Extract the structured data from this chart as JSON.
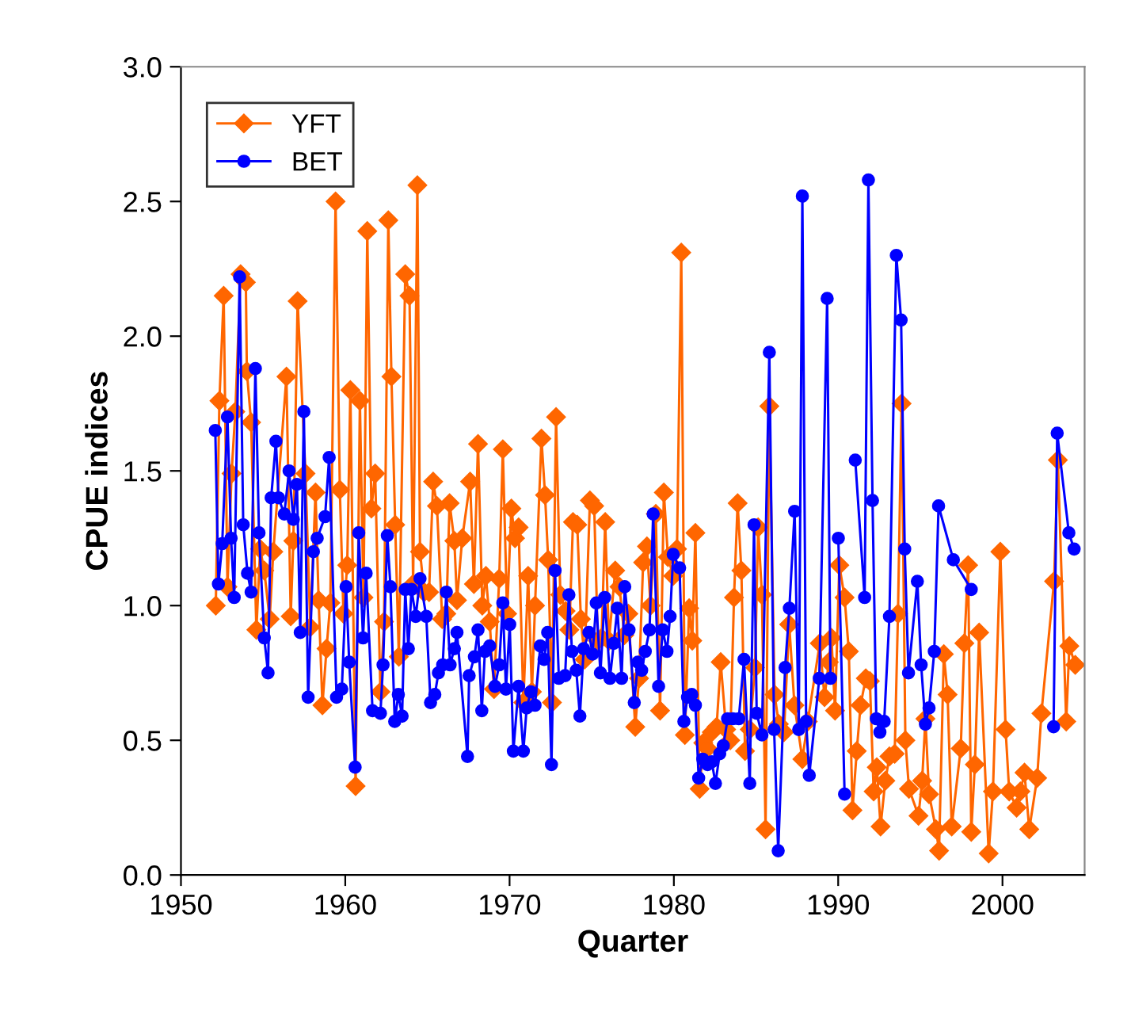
{
  "chart_data": {
    "type": "line",
    "xlabel": "Quarter",
    "ylabel": "CPUE indices",
    "xlim": [
      1950,
      2005
    ],
    "xticks": [
      1950,
      1960,
      1970,
      1980,
      1990,
      2000
    ],
    "ylim": [
      0,
      3
    ],
    "yticks": [
      {
        "value": 0,
        "label": "0.0"
      },
      {
        "value": 0.5,
        "label": "0.5"
      },
      {
        "value": 1,
        "label": "1.0"
      },
      {
        "value": 1.5,
        "label": "1.5"
      },
      {
        "value": 2,
        "label": "2.0"
      },
      {
        "value": 2.5,
        "label": "2.5"
      },
      {
        "value": 3,
        "label": "3.0"
      }
    ],
    "grid": false,
    "legend": "top left",
    "series": [
      {
        "name": "YFT",
        "color": "#ff6600",
        "marker": "diamond",
        "x": [
          1952.12,
          1952.34,
          1952.6,
          1952.83,
          1953.08,
          1953.31,
          1953.63,
          1953.95,
          1954.01,
          1954.27,
          1954.59,
          1954.82,
          1955.07,
          1955.4,
          1955.62,
          1956.42,
          1956.68,
          1956.84,
          1957.1,
          1957.58,
          1957.87,
          1958.19,
          1958.38,
          1958.61,
          1958.86,
          1959.09,
          1959.41,
          1959.67,
          1959.89,
          1960.12,
          1960.31,
          1960.63,
          1960.89,
          1961.11,
          1961.34,
          1961.59,
          1961.82,
          1962.14,
          1962.36,
          1962.62,
          1962.81,
          1963.04,
          1963.26,
          1963.65,
          1963.91,
          1964.13,
          1964.39,
          1964.55,
          1964.8,
          1965.1,
          1965.35,
          1965.58,
          1965.9,
          1966.15,
          1966.35,
          1966.64,
          1966.8,
          1967.12,
          1967.6,
          1967.83,
          1968.08,
          1968.34,
          1968.56,
          1968.79,
          1969.05,
          1969.37,
          1969.59,
          1969.85,
          1970.11,
          1970.33,
          1970.55,
          1970.84,
          1971.13,
          1971.36,
          1971.55,
          1971.94,
          1972.16,
          1972.35,
          1972.58,
          1972.83,
          1973.09,
          1973.41,
          1973.64,
          1973.86,
          1974.12,
          1974.34,
          1974.57,
          1974.89,
          1975.15,
          1975.37,
          1975.6,
          1975.82,
          1976.05,
          1976.43,
          1976.69,
          1976.98,
          1977.23,
          1977.65,
          1977.88,
          1978.13,
          1978.36,
          1978.58,
          1978.9,
          1979.16,
          1979.39,
          1979.64,
          1979.96,
          1980.19,
          1980.45,
          1980.67,
          1980.93,
          1981.12,
          1981.31,
          1981.57,
          1981.79,
          1982.05,
          1982.31,
          1982.6,
          1982.85,
          1983.18,
          1983.43,
          1983.66,
          1983.88,
          1984.11,
          1984.33,
          1984.62,
          1984.94,
          1985.13,
          1985.36,
          1985.58,
          1985.81,
          1986.13,
          1986.39,
          1986.7,
          1987.02,
          1987.34,
          1987.82,
          1988.15,
          1988.88,
          1989.17,
          1989.43,
          1989.59,
          1989.81,
          1990.07,
          1990.39,
          1990.65,
          1990.87,
          1991.13,
          1991.36,
          1991.68,
          1991.93,
          1992.16,
          1992.35,
          1992.58,
          1992.87,
          1993.12,
          1993.44,
          1993.64,
          1993.86,
          1994.09,
          1994.31,
          1994.89,
          1995.11,
          1995.31,
          1995.53,
          1995.95,
          1996.14,
          1996.43,
          1996.66,
          1996.91,
          1997.46,
          1997.68,
          1997.91,
          1998.1,
          1998.32,
          1998.58,
          1999.16,
          1999.42,
          1999.87,
          2000.19,
          2000.41,
          2000.86,
          2001.09,
          2001.34,
          2001.63,
          2002.11,
          2002.37,
          2003.14,
          2003.37,
          2003.88,
          2004.07,
          2004.43
        ],
        "values": [
          1.0,
          1.76,
          2.15,
          1.07,
          1.49,
          1.72,
          2.23,
          2.2,
          1.87,
          1.68,
          0.91,
          1.21,
          1.13,
          0.95,
          1.2,
          1.85,
          0.96,
          1.24,
          2.13,
          1.49,
          0.92,
          1.42,
          1.02,
          0.63,
          0.84,
          1.01,
          2.5,
          1.43,
          0.97,
          1.15,
          1.8,
          0.33,
          1.76,
          1.03,
          2.39,
          1.36,
          1.49,
          0.68,
          0.94,
          2.43,
          1.85,
          1.3,
          0.81,
          2.23,
          2.15,
          1.08,
          2.56,
          1.2,
          1.05,
          1.05,
          1.46,
          1.37,
          0.95,
          0.97,
          1.38,
          1.24,
          1.02,
          1.25,
          1.46,
          1.08,
          1.6,
          1.0,
          1.11,
          0.94,
          0.69,
          1.1,
          1.58,
          0.97,
          1.36,
          1.25,
          1.29,
          0.64,
          1.11,
          0.68,
          1.0,
          1.62,
          1.41,
          1.17,
          0.64,
          1.7,
          1.04,
          0.98,
          0.91,
          1.31,
          1.3,
          0.95,
          0.8,
          1.39,
          1.37,
          0.87,
          0.88,
          1.31,
          0.87,
          1.13,
          1.07,
          0.89,
          0.97,
          0.55,
          0.73,
          1.16,
          1.22,
          1.0,
          1.34,
          0.61,
          1.42,
          1.18,
          1.11,
          1.21,
          2.31,
          0.52,
          0.99,
          0.87,
          1.27,
          0.32,
          0.49,
          0.47,
          0.53,
          0.55,
          0.79,
          0.54,
          0.5,
          1.03,
          1.38,
          1.13,
          0.46,
          0.54,
          0.77,
          1.29,
          1.04,
          0.17,
          1.74,
          0.67,
          0.56,
          0.53,
          0.93,
          0.63,
          0.43,
          0.57,
          0.86,
          0.66,
          0.79,
          0.88,
          0.61,
          1.15,
          1.03,
          0.83,
          0.24,
          0.46,
          0.63,
          0.73,
          0.72,
          0.31,
          0.4,
          0.18,
          0.35,
          0.44,
          0.45,
          0.97,
          1.75,
          0.5,
          0.32,
          0.22,
          0.35,
          0.58,
          0.3,
          0.17,
          0.09,
          0.82,
          0.67,
          0.18,
          0.47,
          0.86,
          1.15,
          0.16,
          0.41,
          0.9,
          0.08,
          0.31,
          1.2,
          0.54,
          0.31,
          0.25,
          0.31,
          0.38,
          0.17,
          0.36,
          0.6,
          1.09,
          1.54,
          0.57,
          0.85,
          0.78
        ]
      },
      {
        "name": "BET",
        "color": "#0000ff",
        "marker": "circle",
        "x": [
          1952.09,
          1952.28,
          1952.51,
          1952.83,
          1953.05,
          1953.24,
          1953.57,
          1953.79,
          1954.05,
          1954.27,
          1954.53,
          1954.75,
          1955.07,
          1955.3,
          1955.49,
          1955.78,
          1955.94,
          1956.29,
          1956.58,
          1956.84,
          1957.06,
          1957.26,
          1957.48,
          1957.74,
          1958.06,
          1958.29,
          1958.77,
          1959.02,
          1959.47,
          1959.79,
          1960.05,
          1960.24,
          1960.6,
          1960.82,
          1961.08,
          1961.27,
          1961.66,
          1962.14,
          1962.3,
          1962.56,
          1962.75,
          1963.01,
          1963.23,
          1963.46,
          1963.65,
          1963.84,
          1964.03,
          1964.29,
          1964.55,
          1964.93,
          1965.19,
          1965.45,
          1965.67,
          1965.93,
          1966.15,
          1966.38,
          1966.64,
          1966.8,
          1967.44,
          1967.54,
          1967.86,
          1968.08,
          1968.31,
          1968.5,
          1968.79,
          1969.11,
          1969.37,
          1969.59,
          1969.78,
          1970.01,
          1970.23,
          1970.55,
          1970.84,
          1971.04,
          1971.29,
          1971.55,
          1971.87,
          1972.1,
          1972.32,
          1972.55,
          1972.77,
          1973.0,
          1973.38,
          1973.61,
          1973.8,
          1974.06,
          1974.28,
          1974.51,
          1974.83,
          1975.05,
          1975.28,
          1975.53,
          1975.79,
          1976.11,
          1976.34,
          1976.56,
          1976.82,
          1977.01,
          1977.27,
          1977.59,
          1977.81,
          1978.04,
          1978.26,
          1978.52,
          1978.74,
          1979.07,
          1979.32,
          1979.58,
          1979.77,
          1979.96,
          1980.35,
          1980.61,
          1980.83,
          1981.09,
          1981.31,
          1981.51,
          1981.76,
          1982.05,
          1982.31,
          1982.53,
          1982.79,
          1983.01,
          1983.27,
          1983.59,
          1983.95,
          1984.27,
          1984.62,
          1984.88,
          1985.04,
          1985.36,
          1985.81,
          1986.1,
          1986.35,
          1986.77,
          1987.03,
          1987.35,
          1987.6,
          1987.82,
          1988.05,
          1988.24,
          1988.85,
          1989.33,
          1989.53,
          1989.81,
          1990.01,
          1990.39,
          1990.62,
          1990.81,
          1991.04,
          1991.61,
          1991.84,
          1992.09,
          1992.32,
          1992.54,
          1992.8,
          1993.12,
          1993.54,
          1993.83,
          1994.05,
          1994.28,
          1994.82,
          1995.05,
          1995.31,
          1995.53,
          1995.85,
          1996.11,
          1997.01,
          1998.1,
          1998.26,
          2003.11,
          2003.33,
          2004.04,
          2004.36
        ],
        "values": [
          1.65,
          1.08,
          1.23,
          1.7,
          1.25,
          1.03,
          2.22,
          1.3,
          1.12,
          1.05,
          1.88,
          1.27,
          0.88,
          0.75,
          1.4,
          1.61,
          1.4,
          1.34,
          1.5,
          1.32,
          1.45,
          0.9,
          1.72,
          0.66,
          1.2,
          1.25,
          1.33,
          1.55,
          0.66,
          0.69,
          1.07,
          0.79,
          0.4,
          1.27,
          0.88,
          1.12,
          0.61,
          0.6,
          0.78,
          1.26,
          1.07,
          0.57,
          0.67,
          0.59,
          1.06,
          0.84,
          1.06,
          0.96,
          1.1,
          0.96,
          0.64,
          0.67,
          0.75,
          0.78,
          1.05,
          0.78,
          0.84,
          0.9,
          0.44,
          0.74,
          0.81,
          0.91,
          0.61,
          0.83,
          0.85,
          0.7,
          0.78,
          1.01,
          0.69,
          0.93,
          0.46,
          0.7,
          0.46,
          0.62,
          0.68,
          0.63,
          0.85,
          0.8,
          0.9,
          0.41,
          1.13,
          0.73,
          0.74,
          1.04,
          0.83,
          0.76,
          0.59,
          0.84,
          0.9,
          0.82,
          1.01,
          0.75,
          1.03,
          0.73,
          0.86,
          0.99,
          0.73,
          1.07,
          0.91,
          0.64,
          0.79,
          0.76,
          0.83,
          0.91,
          1.34,
          0.7,
          0.91,
          0.83,
          0.96,
          1.19,
          1.14,
          0.57,
          0.66,
          0.67,
          0.63,
          0.36,
          0.43,
          0.41,
          0.42,
          0.34,
          0.45,
          0.48,
          0.58,
          0.58,
          0.58,
          0.8,
          0.34,
          1.3,
          0.6,
          0.52,
          1.94,
          0.54,
          0.09,
          0.77,
          0.99,
          1.35,
          0.54,
          2.52,
          0.57,
          0.37,
          0.73,
          2.14,
          0.73,
          null,
          1.25,
          0.3,
          null,
          null,
          1.54,
          1.03,
          2.58,
          1.39,
          0.58,
          0.53,
          0.57,
          0.96,
          2.3,
          2.06,
          1.21,
          0.75,
          1.09,
          0.78,
          0.56,
          0.62,
          0.83,
          1.37,
          1.17,
          1.06,
          null,
          0.55,
          1.64,
          1.27,
          1.21
        ]
      }
    ]
  }
}
